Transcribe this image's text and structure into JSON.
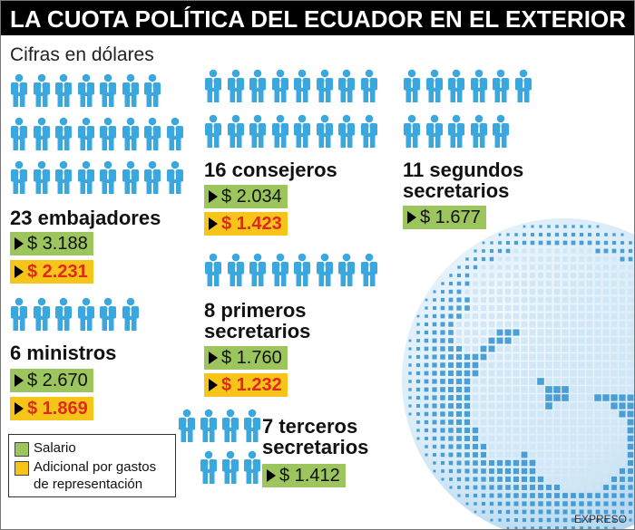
{
  "title": "LA CUOTA POLÍTICA DEL ECUADOR EN EL EXTERIOR",
  "subtitle": "Cifras en dólares",
  "icon": "person-icon",
  "colors": {
    "person": "#3aa7df",
    "salary": "#9cc55d",
    "additional": "#f7c41a",
    "additional_text": "#e0281b",
    "globe_dark": "#2f8fcf",
    "globe_light": "#cfe6f5"
  },
  "groups": {
    "embajadores": {
      "label": "23 embajadores",
      "count": 23,
      "salary": "$ 3.188",
      "additional": "$ 2.231"
    },
    "ministros": {
      "label": "6 ministros",
      "count": 6,
      "salary": "$ 2.670",
      "additional": "$ 1.869"
    },
    "consejeros": {
      "label": "16 consejeros",
      "count": 16,
      "salary": "$ 2.034",
      "additional": "$ 1.423"
    },
    "primeros": {
      "label_line1": "8 primeros",
      "label_line2": "secretarios",
      "count": 8,
      "salary": "$ 1.760",
      "additional": "$ 1.232"
    },
    "segundos": {
      "label_line1": "11 segundos",
      "label_line2": "secretarios",
      "count": 11,
      "salary": "$ 1.677"
    },
    "terceros": {
      "label_line1": "7 terceros",
      "label_line2": "secretarios",
      "count": 7,
      "salary": "$ 1.412"
    }
  },
  "legend": {
    "salary": "Salario",
    "additional_line1": "Adicional por gastos",
    "additional_line2": "de representación"
  },
  "credit": "EXPRESO"
}
